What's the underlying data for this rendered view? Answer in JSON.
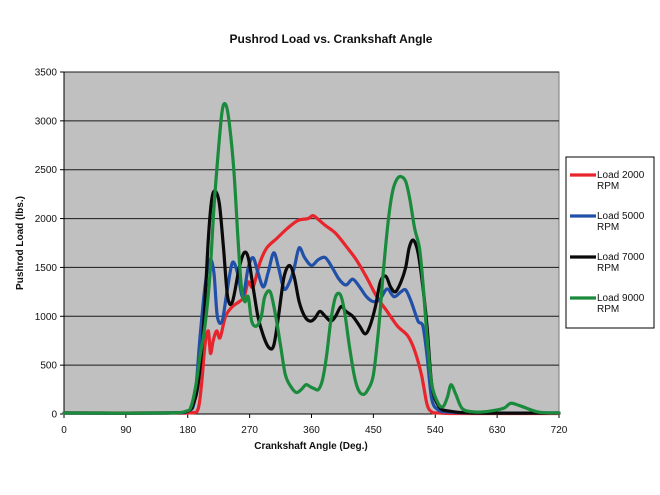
{
  "chart_data": {
    "type": "line",
    "title": "Pushrod Load vs. Crankshaft Angle",
    "xlabel": "Crankshaft Angle (Deg.)",
    "ylabel": "Pushrod Load (lbs.)",
    "xlim": [
      0,
      720
    ],
    "ylim": [
      0,
      3500
    ],
    "xticks": [
      0,
      90,
      180,
      270,
      360,
      450,
      540,
      630,
      720
    ],
    "yticks": [
      0,
      500,
      1000,
      1500,
      2000,
      2500,
      3000,
      3500
    ],
    "grid": "horizontal",
    "legend_position": "right",
    "series": [
      {
        "name": "Load 2000 RPM",
        "color": "#e8242c",
        "x": [
          0,
          150,
          185,
          195,
          200,
          205,
          210,
          213,
          217,
          222,
          227,
          235,
          245,
          255,
          262,
          268,
          275,
          285,
          295,
          310,
          325,
          340,
          355,
          362,
          370,
          380,
          395,
          410,
          425,
          440,
          455,
          470,
          485,
          500,
          510,
          520,
          528,
          535,
          545,
          560,
          600,
          720
        ],
        "y": [
          10,
          10,
          12,
          50,
          300,
          700,
          850,
          620,
          750,
          850,
          780,
          1000,
          1100,
          1150,
          1200,
          1350,
          1300,
          1550,
          1700,
          1800,
          1900,
          1980,
          2000,
          2030,
          1990,
          1930,
          1850,
          1720,
          1580,
          1400,
          1200,
          1050,
          900,
          800,
          650,
          400,
          100,
          20,
          10,
          5,
          5,
          5
        ]
      },
      {
        "name": "Load 5000 RPM",
        "color": "#2150a8",
        "x": [
          0,
          150,
          180,
          190,
          198,
          205,
          212,
          218,
          223,
          230,
          237,
          245,
          253,
          260,
          268,
          275,
          282,
          290,
          297,
          305,
          312,
          320,
          328,
          335,
          342,
          350,
          360,
          370,
          380,
          390,
          400,
          410,
          420,
          430,
          440,
          450,
          460,
          470,
          480,
          490,
          497,
          505,
          515,
          522,
          528,
          535,
          545,
          560,
          600,
          720
        ],
        "y": [
          10,
          10,
          30,
          150,
          800,
          1300,
          1580,
          1450,
          1000,
          950,
          1250,
          1550,
          1430,
          1200,
          1500,
          1600,
          1450,
          1300,
          1450,
          1650,
          1500,
          1280,
          1350,
          1500,
          1700,
          1600,
          1520,
          1580,
          1600,
          1500,
          1380,
          1320,
          1380,
          1300,
          1200,
          1150,
          1180,
          1280,
          1200,
          1250,
          1270,
          1150,
          950,
          900,
          600,
          150,
          40,
          20,
          10,
          10
        ]
      },
      {
        "name": "Load 7000 RPM",
        "color": "#0a0a0a",
        "x": [
          0,
          150,
          180,
          188,
          195,
          203,
          210,
          215,
          220,
          226,
          232,
          238,
          245,
          255,
          262,
          268,
          275,
          282,
          290,
          298,
          305,
          312,
          320,
          328,
          335,
          342,
          350,
          358,
          365,
          372,
          380,
          388,
          395,
          403,
          410,
          420,
          430,
          438,
          445,
          453,
          460,
          468,
          475,
          482,
          490,
          497,
          502,
          508,
          515,
          522,
          528,
          535,
          545,
          560,
          600,
          720
        ],
        "y": [
          10,
          10,
          30,
          100,
          300,
          900,
          1800,
          2200,
          2280,
          2150,
          1700,
          1200,
          1150,
          1500,
          1650,
          1600,
          1300,
          1000,
          800,
          680,
          700,
          1000,
          1400,
          1520,
          1400,
          1150,
          1000,
          950,
          980,
          1050,
          1000,
          950,
          1000,
          1100,
          1050,
          1000,
          900,
          820,
          900,
          1100,
          1350,
          1410,
          1300,
          1250,
          1350,
          1500,
          1700,
          1780,
          1650,
          1300,
          900,
          300,
          80,
          30,
          10,
          10
        ]
      },
      {
        "name": "Load 9000 RPM",
        "color": "#1a8a3c",
        "x": [
          0,
          150,
          178,
          185,
          192,
          198,
          205,
          212,
          218,
          224,
          230,
          235,
          240,
          247,
          253,
          258,
          263,
          268,
          273,
          280,
          287,
          292,
          300,
          308,
          315,
          322,
          330,
          338,
          345,
          352,
          358,
          364,
          370,
          376,
          382,
          388,
          395,
          402,
          408,
          415,
          422,
          428,
          435,
          442,
          450,
          458,
          465,
          472,
          478,
          484,
          490,
          497,
          503,
          510,
          517,
          522,
          528,
          535,
          545,
          552,
          558,
          563,
          570,
          580,
          600,
          620,
          640,
          650,
          665,
          690,
          720
        ],
        "y": [
          10,
          10,
          30,
          80,
          300,
          600,
          900,
          1400,
          2100,
          2650,
          3100,
          3170,
          3000,
          2500,
          1800,
          1300,
          1150,
          1200,
          950,
          900,
          1000,
          1200,
          1250,
          1000,
          700,
          400,
          280,
          220,
          250,
          300,
          280,
          260,
          250,
          350,
          600,
          950,
          1200,
          1220,
          1050,
          700,
          400,
          250,
          200,
          250,
          400,
          900,
          1500,
          2000,
          2280,
          2400,
          2430,
          2380,
          2200,
          1900,
          1700,
          1350,
          800,
          300,
          100,
          80,
          180,
          300,
          200,
          50,
          20,
          30,
          60,
          110,
          80,
          20,
          10
        ]
      }
    ]
  }
}
